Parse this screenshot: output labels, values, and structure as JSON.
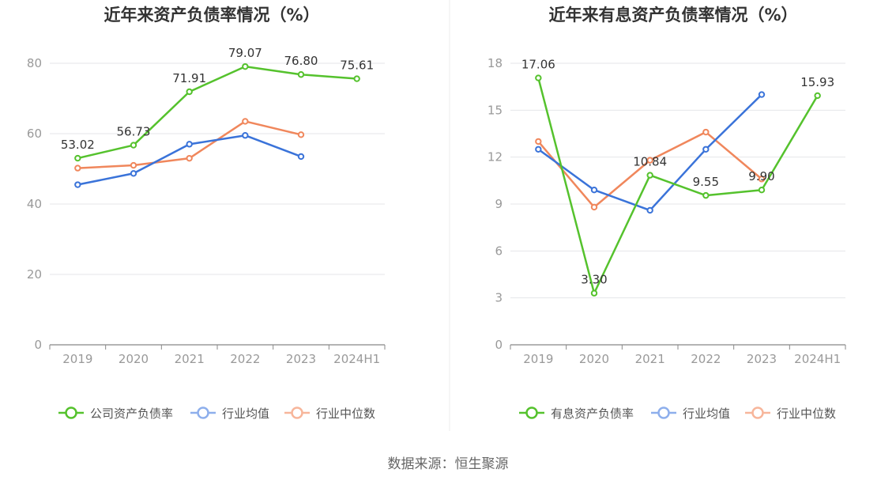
{
  "colors": {
    "company": "#55c22d",
    "avg": "#3a73d9",
    "median": "#f0875c",
    "legend_company": "#55c22d",
    "legend_avg": "#8eafec",
    "legend_median": "#f7b69b",
    "grid": "#e4e6ea",
    "axis": "#999999",
    "text": "#333333",
    "title": "#333333"
  },
  "source": "数据来源：恒生聚源",
  "chart_data": [
    {
      "type": "line",
      "title": "近年来资产负债率情况（%）",
      "categories": [
        "2019",
        "2020",
        "2021",
        "2022",
        "2023",
        "2024H1"
      ],
      "yticks": [
        "0",
        "20",
        "40",
        "60",
        "80"
      ],
      "ylim": [
        0,
        90
      ],
      "series": [
        {
          "name": "公司资产负债率",
          "key": "company",
          "values": [
            53.02,
            56.73,
            71.91,
            79.07,
            76.8,
            75.61
          ],
          "labels": [
            "53.02",
            "56.73",
            "71.91",
            "79.07",
            "76.80",
            "75.61"
          ]
        },
        {
          "name": "行业均值",
          "key": "avg",
          "values": [
            45.5,
            48.7,
            57.0,
            59.5,
            53.5,
            null
          ]
        },
        {
          "name": "行业中位数",
          "key": "median",
          "values": [
            50.2,
            51.0,
            53.0,
            63.5,
            59.7,
            null
          ]
        }
      ],
      "legend": "bottom"
    },
    {
      "type": "line",
      "title": "近年来有息资产负债率情况（%）",
      "categories": [
        "2019",
        "2020",
        "2021",
        "2022",
        "2023",
        "2024H1"
      ],
      "yticks": [
        "0",
        "3",
        "6",
        "9",
        "12",
        "15",
        "18"
      ],
      "ylim": [
        0,
        18
      ],
      "series": [
        {
          "name": "有息资产负债率",
          "key": "company",
          "values": [
            17.06,
            3.3,
            10.84,
            9.55,
            9.9,
            15.93
          ],
          "labels": [
            "17.06",
            "3.30",
            "10.84",
            "9.55",
            "9.90",
            "15.93"
          ]
        },
        {
          "name": "行业均值",
          "key": "avg",
          "values": [
            12.5,
            9.9,
            8.6,
            12.5,
            16.0,
            null
          ]
        },
        {
          "name": "行业中位数",
          "key": "median",
          "values": [
            13.0,
            8.8,
            11.8,
            13.6,
            10.6,
            null
          ]
        }
      ],
      "legend": "bottom"
    }
  ]
}
